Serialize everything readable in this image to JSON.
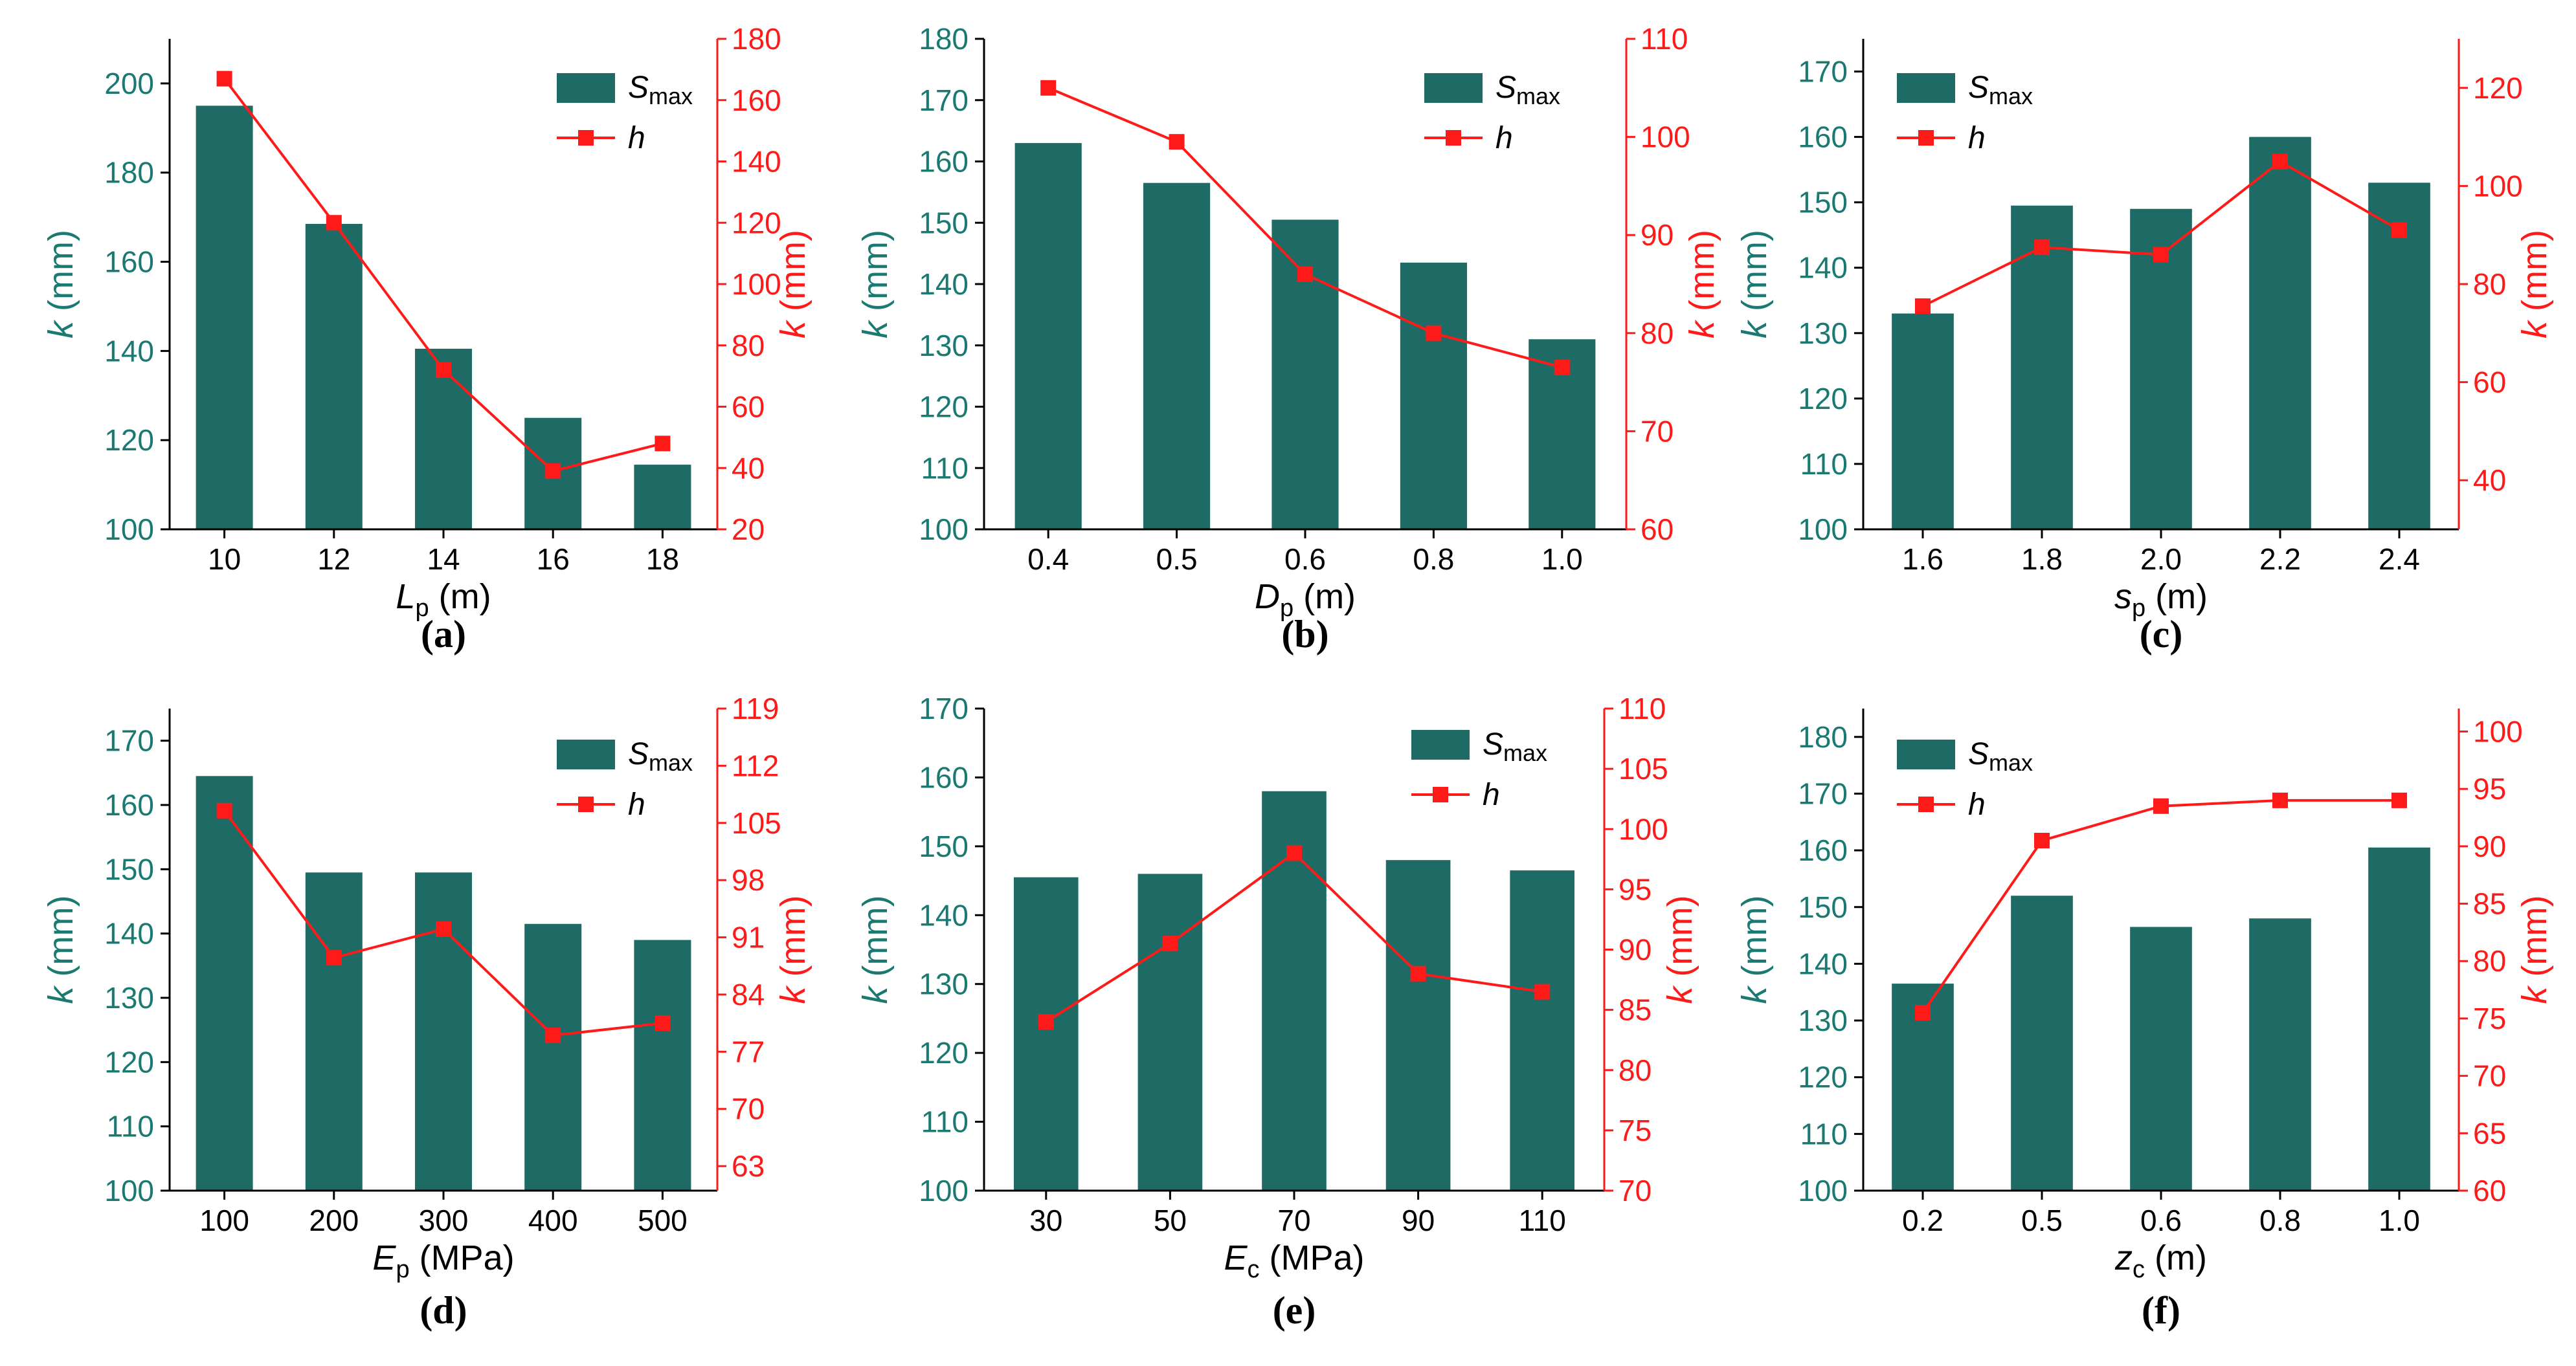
{
  "colors": {
    "bar": "#1e6b66",
    "line": "#ff1a1a",
    "left_axis": "#1a7a72",
    "right_axis": "#ff1a1a",
    "axis": "#000000"
  },
  "legend": {
    "bar_label_base": "S",
    "bar_label_sub": "max",
    "line_label": "h"
  },
  "chart_data": [
    {
      "type": "bar+line",
      "panel_label": "(a)",
      "categories": [
        "10",
        "12",
        "14",
        "16",
        "18"
      ],
      "xlabel": {
        "base": "L",
        "sub": "p",
        "unit": " (m)"
      },
      "ylabel_left": {
        "base": "k",
        "unit": " (mm)"
      },
      "ylabel_right": {
        "base": "k",
        "unit": " (mm)"
      },
      "ylim_left": [
        100,
        210
      ],
      "yticks_left": [
        100,
        120,
        140,
        160,
        180,
        200
      ],
      "ylim_right": [
        20,
        180
      ],
      "yticks_right": [
        20,
        40,
        60,
        80,
        100,
        120,
        140,
        160,
        180
      ],
      "bar_series": {
        "name": "Smax",
        "values": [
          195,
          168.5,
          140.5,
          125,
          114.5
        ]
      },
      "line_series": {
        "name": "h",
        "values": [
          167,
          120,
          72,
          39,
          48
        ]
      }
    },
    {
      "type": "bar+line",
      "panel_label": "(b)",
      "categories": [
        "0.4",
        "0.5",
        "0.6",
        "0.8",
        "1.0"
      ],
      "xlabel": {
        "base": "D",
        "sub": "p",
        "unit": " (m)"
      },
      "ylabel_left": {
        "base": "k",
        "unit": " (mm)"
      },
      "ylabel_right": {
        "base": "k",
        "unit": " (mm)"
      },
      "ylim_left": [
        100,
        180
      ],
      "yticks_left": [
        100,
        110,
        120,
        130,
        140,
        150,
        160,
        170,
        180
      ],
      "ylim_right": [
        60,
        110
      ],
      "yticks_right": [
        60,
        70,
        80,
        90,
        100,
        110
      ],
      "bar_series": {
        "name": "Smax",
        "values": [
          163,
          156.5,
          150.5,
          143.5,
          131
        ]
      },
      "line_series": {
        "name": "h",
        "values": [
          105,
          99.5,
          86,
          80,
          76.5
        ]
      }
    },
    {
      "type": "bar+line",
      "panel_label": "(c)",
      "categories": [
        "1.6",
        "1.8",
        "2.0",
        "2.2",
        "2.4"
      ],
      "xlabel": {
        "base": "s",
        "sub": "p",
        "unit": " (m)"
      },
      "ylabel_left": {
        "base": "k",
        "unit": " (mm)"
      },
      "ylabel_right": {
        "base": "k",
        "unit": " (mm)"
      },
      "ylim_left": [
        100,
        175
      ],
      "yticks_left": [
        100,
        110,
        120,
        130,
        140,
        150,
        160,
        170
      ],
      "ylim_right": [
        30,
        130
      ],
      "yticks_right": [
        40,
        60,
        80,
        100,
        120
      ],
      "bar_series": {
        "name": "Smax",
        "values": [
          133,
          149.5,
          149,
          160,
          153
        ]
      },
      "line_series": {
        "name": "h",
        "values": [
          75.5,
          87.5,
          86,
          105,
          91
        ]
      }
    },
    {
      "type": "bar+line",
      "panel_label": "(d)",
      "categories": [
        "100",
        "200",
        "300",
        "400",
        "500"
      ],
      "xlabel": {
        "base": "E",
        "sub": "p",
        "unit": " (MPa)"
      },
      "ylabel_left": {
        "base": "k",
        "unit": " (mm)"
      },
      "ylabel_right": {
        "base": "k",
        "unit": " (mm)"
      },
      "ylim_left": [
        100,
        175
      ],
      "yticks_left": [
        100,
        110,
        120,
        130,
        140,
        150,
        160,
        170
      ],
      "ylim_right": [
        60,
        119
      ],
      "yticks_right": [
        63,
        70,
        77,
        84,
        91,
        98,
        105,
        112,
        119
      ],
      "bar_series": {
        "name": "Smax",
        "values": [
          164.5,
          149.5,
          149.5,
          141.5,
          139
        ]
      },
      "line_series": {
        "name": "h",
        "values": [
          106.5,
          88.5,
          92,
          79,
          80.5
        ]
      }
    },
    {
      "type": "bar+line",
      "panel_label": "(e)",
      "categories": [
        "30",
        "50",
        "70",
        "90",
        "110"
      ],
      "xlabel": {
        "base": "E",
        "sub": "c",
        "unit": " (MPa)"
      },
      "ylabel_left": {
        "base": "k",
        "unit": " (mm)"
      },
      "ylabel_right": {
        "base": "k",
        "unit": " (mm)"
      },
      "ylim_left": [
        100,
        170
      ],
      "yticks_left": [
        100,
        110,
        120,
        130,
        140,
        150,
        160,
        170
      ],
      "ylim_right": [
        70,
        110
      ],
      "yticks_right": [
        70,
        75,
        80,
        85,
        90,
        95,
        100,
        105,
        110
      ],
      "bar_series": {
        "name": "Smax",
        "values": [
          145.5,
          146,
          158,
          148,
          146.5
        ]
      },
      "line_series": {
        "name": "h",
        "values": [
          84,
          90.5,
          98,
          88,
          86.5
        ]
      }
    },
    {
      "type": "bar+line",
      "panel_label": "(f)",
      "categories": [
        "0.2",
        "0.5",
        "0.6",
        "0.8",
        "1.0"
      ],
      "xlabel": {
        "base": "z",
        "sub": "c",
        "unit": " (m)"
      },
      "ylabel_left": {
        "base": "k",
        "unit": " (mm)"
      },
      "ylabel_right": {
        "base": "k",
        "unit": " (mm)"
      },
      "ylim_left": [
        100,
        185
      ],
      "yticks_left": [
        100,
        110,
        120,
        130,
        140,
        150,
        160,
        170,
        180
      ],
      "ylim_right": [
        60,
        102
      ],
      "yticks_right": [
        60,
        65,
        70,
        75,
        80,
        85,
        90,
        95,
        100
      ],
      "bar_series": {
        "name": "Smax",
        "values": [
          136.5,
          152,
          146.5,
          148,
          160.5
        ]
      },
      "line_series": {
        "name": "h",
        "values": [
          75.5,
          90.5,
          93.5,
          94,
          94
        ]
      }
    }
  ]
}
